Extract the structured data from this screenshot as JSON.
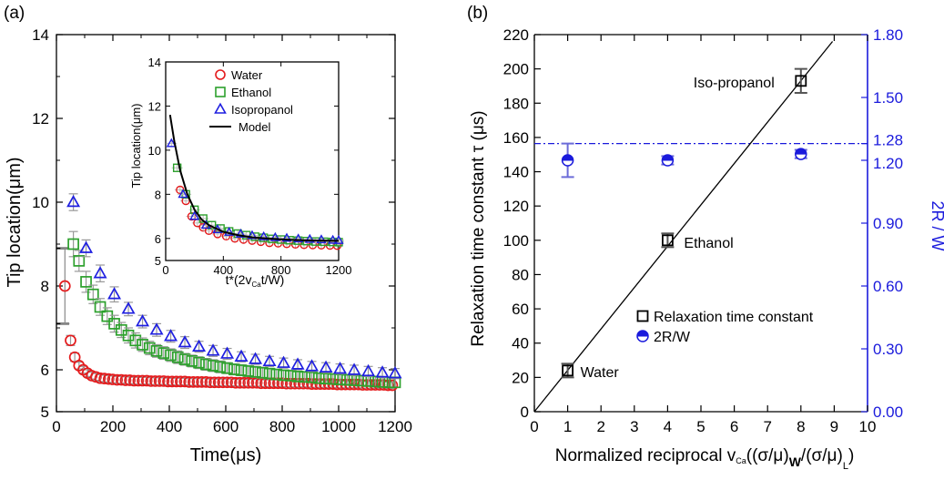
{
  "colors": {
    "water": "#e41a1c",
    "ethanol": "#2ca02c",
    "isopropanol": "#1f1fe0",
    "model": "#000000",
    "right_axis": "#1a1adc"
  },
  "chart_data": [
    {
      "type": "scatter",
      "panel_label": "(a)",
      "xlabel": "Time(μs)",
      "ylabel": "Tip location(μm)",
      "xlim": [
        0,
        1200
      ],
      "ylim": [
        5,
        14
      ],
      "xticks": [
        "0",
        "200",
        "400",
        "600",
        "800",
        "1000",
        "1200"
      ],
      "yticks": [
        "5",
        "6",
        "8",
        "10",
        "12",
        "14"
      ],
      "series": [
        {
          "name": "",
          "marker": "circle",
          "color": "#e41a1c",
          "x": [
            30,
            50,
            65,
            80,
            95,
            110,
            125,
            140,
            155,
            170,
            185,
            200,
            215,
            230,
            245,
            260,
            275,
            290,
            305,
            320,
            335,
            350,
            365,
            380,
            395,
            410,
            425,
            440,
            455,
            470,
            485,
            500,
            515,
            530,
            545,
            560,
            575,
            590,
            605,
            620,
            635,
            650,
            665,
            680,
            695,
            710,
            725,
            740,
            755,
            770,
            785,
            800,
            815,
            830,
            845,
            860,
            875,
            890,
            905,
            920,
            935,
            950,
            965,
            980,
            995,
            1010,
            1025,
            1040,
            1055,
            1070,
            1085,
            1100,
            1115,
            1130,
            1145,
            1160,
            1175,
            1190
          ],
          "y": [
            8.0,
            6.7,
            6.3,
            6.1,
            6.0,
            5.92,
            5.86,
            5.83,
            5.8,
            5.79,
            5.78,
            5.77,
            5.76,
            5.76,
            5.75,
            5.75,
            5.74,
            5.74,
            5.74,
            5.74,
            5.73,
            5.73,
            5.73,
            5.73,
            5.72,
            5.72,
            5.72,
            5.72,
            5.72,
            5.71,
            5.71,
            5.71,
            5.71,
            5.71,
            5.7,
            5.7,
            5.7,
            5.7,
            5.7,
            5.7,
            5.69,
            5.69,
            5.69,
            5.69,
            5.69,
            5.69,
            5.68,
            5.68,
            5.68,
            5.68,
            5.68,
            5.68,
            5.67,
            5.67,
            5.67,
            5.67,
            5.67,
            5.67,
            5.66,
            5.66,
            5.66,
            5.66,
            5.66,
            5.66,
            5.65,
            5.65,
            5.65,
            5.65,
            5.65,
            5.65,
            5.64,
            5.64,
            5.64,
            5.64,
            5.64,
            5.64,
            5.63,
            5.63
          ],
          "yerr": [
            0.9,
            0.12,
            0.1,
            0.08,
            0.08,
            0.08,
            0.08,
            0.08,
            0.08,
            0.08,
            0.08,
            0.08,
            0.08,
            0.08,
            0.08,
            0.08,
            0.08,
            0.08,
            0.08,
            0.08,
            0.08,
            0.08,
            0.08,
            0.08,
            0.08,
            0.08,
            0.08,
            0.08,
            0.08,
            0.08,
            0.08,
            0.08,
            0.08,
            0.08,
            0.08,
            0.08,
            0.08,
            0.08,
            0.08,
            0.08,
            0.08,
            0.08,
            0.08,
            0.08,
            0.08,
            0.08,
            0.08,
            0.08,
            0.08,
            0.08,
            0.08,
            0.08,
            0.08,
            0.08,
            0.08,
            0.08,
            0.08,
            0.08,
            0.08,
            0.08,
            0.08,
            0.08,
            0.08,
            0.08,
            0.08,
            0.08,
            0.08,
            0.08,
            0.08,
            0.08,
            0.08,
            0.08,
            0.08,
            0.08,
            0.08,
            0.08,
            0.08,
            0.08
          ]
        },
        {
          "name": "",
          "marker": "square",
          "color": "#2ca02c",
          "x": [
            60,
            80,
            105,
            130,
            155,
            180,
            205,
            230,
            255,
            280,
            305,
            330,
            355,
            380,
            405,
            430,
            455,
            480,
            505,
            530,
            555,
            580,
            605,
            630,
            655,
            680,
            705,
            730,
            755,
            780,
            805,
            830,
            855,
            880,
            905,
            930,
            955,
            980,
            1005,
            1030,
            1055,
            1080,
            1105,
            1130,
            1155,
            1180,
            1200
          ],
          "y": [
            9.0,
            8.6,
            8.1,
            7.8,
            7.5,
            7.28,
            7.1,
            6.95,
            6.82,
            6.7,
            6.6,
            6.52,
            6.45,
            6.4,
            6.35,
            6.3,
            6.25,
            6.21,
            6.17,
            6.13,
            6.1,
            6.07,
            6.04,
            6.01,
            5.99,
            5.97,
            5.95,
            5.93,
            5.91,
            5.89,
            5.87,
            5.86,
            5.84,
            5.83,
            5.82,
            5.8,
            5.79,
            5.78,
            5.77,
            5.76,
            5.75,
            5.74,
            5.73,
            5.72,
            5.71,
            5.7,
            5.7
          ],
          "yerr": [
            0.3,
            0.25,
            0.25,
            0.22,
            0.2,
            0.2,
            0.2,
            0.18,
            0.18,
            0.18,
            0.16,
            0.16,
            0.15,
            0.15,
            0.15,
            0.15,
            0.14,
            0.14,
            0.14,
            0.14,
            0.14,
            0.14,
            0.13,
            0.13,
            0.13,
            0.13,
            0.13,
            0.13,
            0.12,
            0.12,
            0.12,
            0.12,
            0.12,
            0.12,
            0.12,
            0.12,
            0.12,
            0.12,
            0.12,
            0.12,
            0.12,
            0.12,
            0.12,
            0.12,
            0.12,
            0.12,
            0.12
          ]
        },
        {
          "name": "",
          "marker": "triangle",
          "color": "#1f1fe0",
          "x": [
            60,
            105,
            155,
            205,
            255,
            305,
            355,
            405,
            455,
            505,
            555,
            605,
            655,
            705,
            755,
            805,
            855,
            905,
            955,
            1005,
            1055,
            1105,
            1155,
            1200
          ],
          "y": [
            10.0,
            8.9,
            8.3,
            7.8,
            7.45,
            7.15,
            6.95,
            6.8,
            6.65,
            6.55,
            6.45,
            6.38,
            6.31,
            6.25,
            6.2,
            6.16,
            6.12,
            6.08,
            6.05,
            6.02,
            5.99,
            5.96,
            5.93,
            5.91
          ],
          "yerr": [
            0.2,
            0.2,
            0.2,
            0.18,
            0.16,
            0.15,
            0.15,
            0.14,
            0.14,
            0.13,
            0.13,
            0.13,
            0.12,
            0.12,
            0.12,
            0.12,
            0.12,
            0.12,
            0.12,
            0.12,
            0.12,
            0.12,
            0.12,
            0.12
          ]
        }
      ],
      "bracket": {
        "x": 0,
        "y_low": 7.1,
        "y_high": 8.9
      }
    },
    {
      "type": "line",
      "panel": "(a) inset",
      "xlabel": "t*(2v",
      "xlabel_sub": "Ca",
      "xlabel_end": "t/W)",
      "ylabel": "Tip location(μm)",
      "xlim": [
        0,
        1200
      ],
      "ylim": [
        5,
        14
      ],
      "xticks": [
        "0",
        "400",
        "800",
        "1200"
      ],
      "yticks": [
        "5",
        "6",
        "8",
        "10",
        "12",
        "14"
      ],
      "legend": [
        "Water",
        "Ethanol",
        "Isopropanol",
        "Model"
      ],
      "legend_position": "top-right",
      "series": [
        {
          "name": "Water",
          "marker": "circle",
          "color": "#e41a1c",
          "x": [
            100,
            140,
            180,
            220,
            260,
            300,
            360,
            420,
            480,
            540,
            600,
            660,
            720,
            780,
            840,
            900,
            960,
            1020,
            1080,
            1140,
            1190
          ],
          "y": [
            8.2,
            7.7,
            7.0,
            6.7,
            6.5,
            6.35,
            6.2,
            6.1,
            6.0,
            5.95,
            5.9,
            5.85,
            5.8,
            5.78,
            5.75,
            5.73,
            5.71,
            5.7,
            5.69,
            5.68,
            5.67
          ]
        },
        {
          "name": "Ethanol",
          "marker": "square",
          "color": "#2ca02c",
          "x": [
            80,
            140,
            200,
            260,
            320,
            380,
            440,
            500,
            560,
            620,
            680,
            740,
            800,
            860,
            920,
            980,
            1040,
            1100,
            1160,
            1200
          ],
          "y": [
            9.2,
            8.0,
            7.3,
            6.9,
            6.6,
            6.45,
            6.32,
            6.22,
            6.15,
            6.08,
            6.03,
            5.98,
            5.95,
            5.92,
            5.9,
            5.88,
            5.86,
            5.85,
            5.84,
            5.83
          ]
        },
        {
          "name": "Isopropanol",
          "marker": "triangle",
          "color": "#1f1fe0",
          "x": [
            40,
            120,
            200,
            280,
            360,
            440,
            520,
            600,
            680,
            760,
            840,
            920,
            1000,
            1080,
            1160,
            1200
          ],
          "y": [
            10.3,
            8.0,
            7.0,
            6.6,
            6.4,
            6.28,
            6.2,
            6.13,
            6.08,
            6.04,
            6.01,
            5.98,
            5.96,
            5.94,
            5.92,
            5.91
          ]
        },
        {
          "name": "Model",
          "color": "#000000",
          "x": [
            30,
            60,
            100,
            150,
            200,
            250,
            300,
            400,
            500,
            600,
            700,
            800,
            900,
            1000,
            1100,
            1200
          ],
          "y": [
            11.6,
            10.4,
            9.1,
            8.0,
            7.3,
            6.85,
            6.6,
            6.3,
            6.15,
            6.05,
            6.0,
            5.96,
            5.93,
            5.91,
            5.9,
            5.89
          ]
        }
      ]
    },
    {
      "type": "scatter",
      "panel_label": "(b)",
      "xlabel": "Normalized reciprocal v",
      "xlabel_sub": "Ca",
      "xlabel_mid": "((σ/μ)",
      "xlabel_sub2": "W",
      "xlabel_mid2": "/(σ/μ)",
      "xlabel_sub3": "L",
      "xlabel_end": ")",
      "ylabel": "Relaxation time constant τ (μs)",
      "ylabel_right": "2R / W",
      "xlim": [
        0,
        10
      ],
      "ylim": [
        0,
        220
      ],
      "ylim_right": [
        0,
        1.8
      ],
      "xticks": [
        "0",
        "1",
        "2",
        "3",
        "4",
        "5",
        "6",
        "7",
        "8",
        "9",
        "10"
      ],
      "yticks": [
        "0",
        "20",
        "40",
        "60",
        "80",
        "100",
        "120",
        "140",
        "160",
        "180",
        "200",
        "220"
      ],
      "yticks_right": [
        "0.00",
        "0.30",
        "0.60",
        "0.90",
        "1.20",
        "1.28",
        "1.50",
        "1.80"
      ],
      "legend": [
        "Relaxation time constant",
        "2R/W"
      ],
      "legend_position": "lower-right",
      "series": [
        {
          "name": "Relaxation time constant",
          "marker": "square",
          "color": "#000000",
          "x": [
            1,
            4,
            8
          ],
          "y": [
            24,
            100,
            193
          ],
          "yerr": [
            4,
            4,
            7
          ]
        },
        {
          "name": "2R/W",
          "marker": "half-filled-circle",
          "color": "#1a1adc",
          "axis": "right",
          "x": [
            1,
            4,
            8
          ],
          "y": [
            1.2,
            1.2,
            1.23
          ],
          "yerr": [
            0.08,
            0.02,
            0.02
          ]
        }
      ],
      "fit_line": {
        "x": [
          0,
          8.95
        ],
        "y": [
          0,
          216
        ]
      },
      "reference_line": {
        "axis": "right",
        "y": 1.28,
        "style": "dash-dot"
      },
      "annotations": [
        {
          "text": "Water",
          "x": 1,
          "y": 24
        },
        {
          "text": "Ethanol",
          "x": 4,
          "y": 100
        },
        {
          "text": "Iso-propanol",
          "x": 8,
          "y": 193
        }
      ]
    }
  ]
}
